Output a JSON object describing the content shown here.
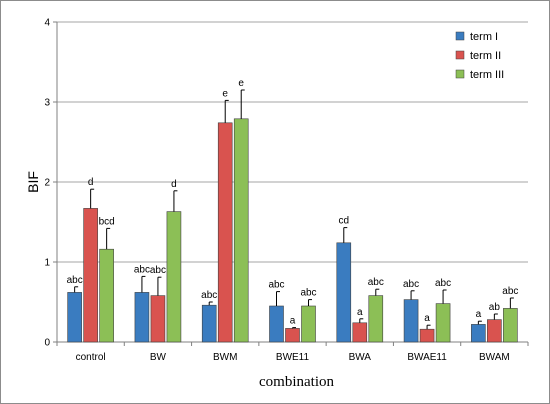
{
  "chart_data": {
    "type": "bar",
    "xlabel": "combination",
    "ylabel": "BIF",
    "ylim": [
      0,
      4
    ],
    "yticks": [
      0,
      1,
      2,
      3,
      4
    ],
    "grid": true,
    "legend_position": "top-right",
    "categories": [
      "control",
      "BW",
      "BWM",
      "BWE11",
      "BWA",
      "BWAE11",
      "BWAM"
    ],
    "series": [
      {
        "name": "term I",
        "color": "#3a7cc0",
        "values": [
          0.62,
          0.62,
          0.46,
          0.45,
          1.24,
          0.53,
          0.22
        ],
        "errors": [
          0.07,
          0.2,
          0.04,
          0.18,
          0.19,
          0.11,
          0.04
        ],
        "labels": [
          "abc",
          "abc",
          "abc",
          "abc",
          "cd",
          "abc",
          "a"
        ]
      },
      {
        "name": "term II",
        "color": "#d9534f",
        "values": [
          1.67,
          0.58,
          2.74,
          0.17,
          0.24,
          0.16,
          0.28
        ],
        "errors": [
          0.24,
          0.23,
          0.28,
          0.01,
          0.05,
          0.05,
          0.07
        ],
        "labels": [
          "d",
          "abc",
          "e",
          "a",
          "a",
          "a",
          "ab"
        ]
      },
      {
        "name": "term III",
        "color": "#8cbf56",
        "values": [
          1.16,
          1.63,
          2.79,
          0.45,
          0.58,
          0.48,
          0.42
        ],
        "errors": [
          0.26,
          0.26,
          0.36,
          0.08,
          0.08,
          0.17,
          0.13
        ],
        "labels": [
          "bcd",
          "d",
          "e",
          "abc",
          "abc",
          "abc",
          "abc"
        ]
      }
    ]
  }
}
